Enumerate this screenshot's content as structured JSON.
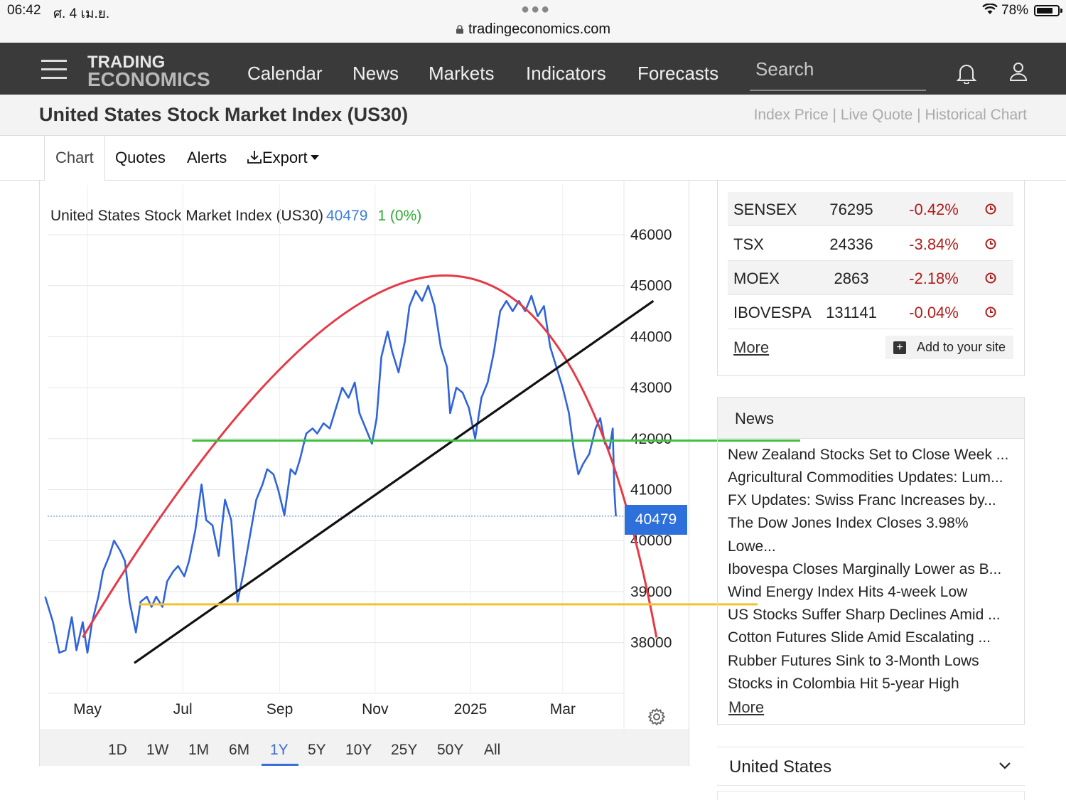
{
  "status_bar": {
    "time": "06:42",
    "date": "ศ. 4 เม.ย.",
    "url": "tradingeconomics.com",
    "battery": "78%",
    "battery_level": 0.78
  },
  "nav": {
    "logo_line1": "TRADING",
    "logo_line2": "ECONOMICS",
    "links": [
      "Calendar",
      "News",
      "Markets",
      "Indicators",
      "Forecasts"
    ],
    "search_placeholder": "Search"
  },
  "page": {
    "title": "United States Stock Market Index (US30)",
    "links": "Index Price | Live Quote | Historical Chart"
  },
  "tabs": {
    "chart": "Chart",
    "quotes": "Quotes",
    "alerts": "Alerts",
    "export": "Export"
  },
  "chart_header": {
    "name": "United States Stock Market Index (US30)",
    "price": "40479",
    "change": "1 (0%)"
  },
  "chart_data": {
    "type": "line",
    "title": "United States Stock Market Index (US30)",
    "xlabel": "",
    "ylabel": "",
    "x_ticks": [
      "May",
      "Jul",
      "Sep",
      "Nov",
      "2025",
      "Mar"
    ],
    "y_ticks": [
      38000,
      39000,
      40000,
      41000,
      42000,
      43000,
      44000,
      45000,
      46000
    ],
    "ylim": [
      37000,
      46300
    ],
    "last_price": 40479,
    "last_price_label": "40479",
    "grid": true,
    "series": [
      {
        "color": "#2f63dd",
        "points": [
          [
            "2024-04-04",
            38900
          ],
          [
            "2024-04-09",
            38400
          ],
          [
            "2024-04-13",
            37800
          ],
          [
            "2024-04-17",
            37850
          ],
          [
            "2024-04-21",
            38500
          ],
          [
            "2024-04-24",
            37850
          ],
          [
            "2024-04-28",
            38400
          ],
          [
            "2024-05-01",
            37800
          ],
          [
            "2024-05-04",
            38400
          ],
          [
            "2024-05-08",
            38900
          ],
          [
            "2024-05-11",
            39400
          ],
          [
            "2024-05-15",
            39700
          ],
          [
            "2024-05-18",
            40000
          ],
          [
            "2024-05-22",
            39800
          ],
          [
            "2024-05-25",
            39600
          ],
          [
            "2024-05-28",
            38800
          ],
          [
            "2024-06-01",
            38200
          ],
          [
            "2024-06-04",
            38800
          ],
          [
            "2024-06-08",
            38900
          ],
          [
            "2024-06-11",
            38700
          ],
          [
            "2024-06-14",
            38900
          ],
          [
            "2024-06-18",
            38700
          ],
          [
            "2024-06-21",
            39200
          ],
          [
            "2024-06-25",
            39400
          ],
          [
            "2024-06-28",
            39500
          ],
          [
            "2024-07-02",
            39300
          ],
          [
            "2024-07-05",
            39600
          ],
          [
            "2024-07-09",
            40200
          ],
          [
            "2024-07-13",
            41100
          ],
          [
            "2024-07-16",
            40400
          ],
          [
            "2024-07-20",
            40300
          ],
          [
            "2024-07-24",
            39700
          ],
          [
            "2024-07-28",
            40800
          ],
          [
            "2024-08-01",
            40400
          ],
          [
            "2024-08-05",
            38800
          ],
          [
            "2024-08-09",
            39400
          ],
          [
            "2024-08-13",
            40100
          ],
          [
            "2024-08-17",
            40800
          ],
          [
            "2024-08-21",
            41100
          ],
          [
            "2024-08-24",
            41400
          ],
          [
            "2024-08-28",
            41300
          ],
          [
            "2024-08-31",
            41000
          ],
          [
            "2024-09-04",
            40500
          ],
          [
            "2024-09-08",
            41400
          ],
          [
            "2024-09-11",
            41300
          ],
          [
            "2024-09-14",
            41600
          ],
          [
            "2024-09-18",
            42100
          ],
          [
            "2024-09-22",
            42200
          ],
          [
            "2024-09-25",
            42100
          ],
          [
            "2024-09-29",
            42300
          ],
          [
            "2024-10-03",
            42200
          ],
          [
            "2024-10-07",
            42600
          ],
          [
            "2024-10-11",
            43000
          ],
          [
            "2024-10-15",
            42800
          ],
          [
            "2024-10-19",
            43100
          ],
          [
            "2024-10-22",
            42500
          ],
          [
            "2024-10-26",
            42200
          ],
          [
            "2024-10-30",
            41900
          ],
          [
            "2024-11-02",
            42400
          ],
          [
            "2024-11-05",
            43600
          ],
          [
            "2024-11-09",
            44100
          ],
          [
            "2024-11-12",
            43700
          ],
          [
            "2024-11-16",
            43300
          ],
          [
            "2024-11-20",
            43900
          ],
          [
            "2024-11-23",
            44600
          ],
          [
            "2024-11-27",
            44900
          ],
          [
            "2024-12-01",
            44700
          ],
          [
            "2024-12-05",
            45000
          ],
          [
            "2024-12-09",
            44600
          ],
          [
            "2024-12-13",
            43800
          ],
          [
            "2024-12-17",
            43400
          ],
          [
            "2024-12-19",
            42500
          ],
          [
            "2024-12-23",
            43000
          ],
          [
            "2024-12-27",
            42900
          ],
          [
            "2024-12-31",
            42600
          ],
          [
            "2025-01-04",
            42000
          ],
          [
            "2025-01-08",
            42800
          ],
          [
            "2025-01-12",
            43100
          ],
          [
            "2025-01-16",
            43700
          ],
          [
            "2025-01-20",
            44500
          ],
          [
            "2025-01-24",
            44700
          ],
          [
            "2025-01-28",
            44500
          ],
          [
            "2025-02-01",
            44700
          ],
          [
            "2025-02-05",
            44500
          ],
          [
            "2025-02-09",
            44800
          ],
          [
            "2025-02-13",
            44400
          ],
          [
            "2025-02-17",
            44600
          ],
          [
            "2025-02-21",
            43800
          ],
          [
            "2025-02-25",
            43400
          ],
          [
            "2025-03-01",
            43000
          ],
          [
            "2025-03-05",
            42500
          ],
          [
            "2025-03-08",
            41800
          ],
          [
            "2025-03-11",
            41300
          ],
          [
            "2025-03-14",
            41500
          ],
          [
            "2025-03-18",
            41700
          ],
          [
            "2025-03-22",
            42200
          ],
          [
            "2025-03-25",
            42400
          ],
          [
            "2025-03-28",
            41900
          ],
          [
            "2025-03-31",
            41800
          ],
          [
            "2025-04-02",
            42200
          ],
          [
            "2025-04-03",
            41000
          ],
          [
            "2025-04-04",
            40479
          ]
        ]
      }
    ],
    "annotations": [
      {
        "type": "arc",
        "color": "#e63946",
        "from": [
          "2024-04-28",
          38100
        ],
        "peak": [
          "2024-12-16",
          45200
        ],
        "to": [
          "2025-04-30",
          38100
        ]
      },
      {
        "type": "line",
        "color": "#111111",
        "from": [
          "2024-05-31",
          37600
        ],
        "to": [
          "2025-04-28",
          44700
        ]
      },
      {
        "type": "hline",
        "color": "#3ec13e",
        "y": 41960,
        "from": "2024-07-07"
      },
      {
        "type": "hline",
        "color": "#f2c12e",
        "y": 38750,
        "from": "2024-06-03"
      }
    ]
  },
  "ranges": [
    "1D",
    "1W",
    "1M",
    "6M",
    "1Y",
    "5Y",
    "10Y",
    "25Y",
    "50Y",
    "All"
  ],
  "active_range": "1Y",
  "markets": [
    {
      "name": "SENSEX",
      "value": "76295",
      "change": "-0.42%"
    },
    {
      "name": "TSX",
      "value": "24336",
      "change": "-3.84%"
    },
    {
      "name": "MOEX",
      "value": "2863",
      "change": "-2.18%"
    },
    {
      "name": "IBOVESPA",
      "value": "131141",
      "change": "-0.04%"
    }
  ],
  "markets_more": "More",
  "add_to_site": "Add to your site",
  "news": {
    "title": "News",
    "items": [
      "New Zealand Stocks Set to Close Week ...",
      "Agricultural Commodities Updates: Lum...",
      "FX Updates: Swiss Franc Increases by...",
      "The Dow Jones Index Closes 3.98%",
      "Lowe...",
      "Ibovespa Closes Marginally Lower as B...",
      "Wind Energy Index Hits 4-week Low",
      "US Stocks Suffer Sharp Declines Amid ...",
      "Cotton Futures Slide Amid Escalating ...",
      "Rubber Futures Sink to 3-Month Lows",
      "Stocks in Colombia Hit 5-year High"
    ],
    "more": "More"
  },
  "country": "United States"
}
